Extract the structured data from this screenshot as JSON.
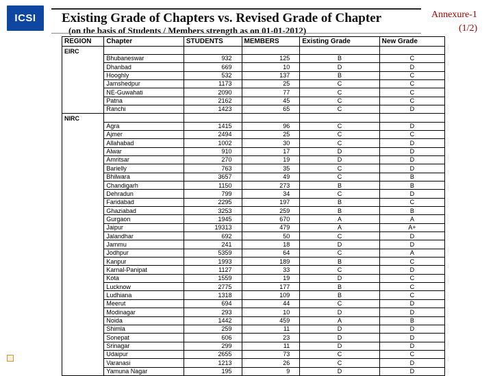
{
  "logo_text": "ICSI",
  "title": "Existing Grade of Chapters vs. Revised Grade of Chapter",
  "subtitle": "(on the basis of Students / Members strength as on 01-01-2012)",
  "annex_line1": "Annexure-1",
  "annex_line2": "(1/2)",
  "columns": [
    "REGION",
    "Chapter",
    "STUDENTS",
    "MEMBERS",
    "Existing Grade",
    "New Grade"
  ],
  "regions": [
    {
      "name": "EIRC",
      "rows": [
        [
          "Bhubaneswar",
          "932",
          "125",
          "B",
          "C"
        ],
        [
          "Dhanbad",
          "669",
          "10",
          "D",
          "D"
        ],
        [
          "Hooghly",
          "532",
          "137",
          "B",
          "C"
        ],
        [
          "Jamshedpur",
          "1173",
          "25",
          "C",
          "C"
        ],
        [
          "NE-Guwahati",
          "2090",
          "77",
          "C",
          "C"
        ],
        [
          "Patna",
          "2162",
          "45",
          "C",
          "C"
        ],
        [
          "Ranchi",
          "1423",
          "65",
          "C",
          "D"
        ]
      ]
    },
    {
      "name": "NIRC",
      "rows": [
        [
          "Agra",
          "1415",
          "96",
          "C",
          "D"
        ],
        [
          "Ajmer",
          "2494",
          "25",
          "C",
          "C"
        ],
        [
          "Allahabad",
          "1002",
          "30",
          "C",
          "D"
        ],
        [
          "Alwar",
          "910",
          "17",
          "D",
          "D"
        ],
        [
          "Amritsar",
          "270",
          "19",
          "D",
          "D"
        ],
        [
          "Barielly",
          "763",
          "35",
          "C",
          "D"
        ],
        [
          "Bhilwara",
          "3657",
          "49",
          "C",
          "B"
        ],
        [
          "Chandigarh",
          "1150",
          "273",
          "B",
          "B"
        ],
        [
          "Dehradun",
          "799",
          "34",
          "C",
          "D"
        ],
        [
          "Faridabad",
          "2295",
          "197",
          "B",
          "C"
        ],
        [
          "Ghaziabad",
          "3253",
          "259",
          "B",
          "B"
        ],
        [
          "Gurgaon",
          "1945",
          "670",
          "A",
          "A"
        ],
        [
          "Jaipur",
          "19313",
          "479",
          "A",
          "A+"
        ],
        [
          "Jalandhar",
          "692",
          "50",
          "C",
          "D"
        ],
        [
          "Jammu",
          "241",
          "18",
          "D",
          "D"
        ],
        [
          "Jodhpur",
          "5359",
          "64",
          "C",
          "A"
        ],
        [
          "Kanpur",
          "1993",
          "189",
          "B",
          "C"
        ],
        [
          "Karnal-Panipat",
          "1127",
          "33",
          "C",
          "D"
        ],
        [
          "Kota",
          "1559",
          "19",
          "D",
          "C"
        ],
        [
          "Lucknow",
          "2775",
          "177",
          "B",
          "C"
        ],
        [
          "Ludhiana",
          "1318",
          "109",
          "B",
          "C"
        ],
        [
          "Meerut",
          "694",
          "44",
          "C",
          "D"
        ],
        [
          "Modinagar",
          "293",
          "10",
          "D",
          "D"
        ],
        [
          "Noida",
          "1442",
          "459",
          "A",
          "B"
        ],
        [
          "Shimla",
          "259",
          "11",
          "D",
          "D"
        ],
        [
          "Sonepat",
          "606",
          "23",
          "D",
          "D"
        ],
        [
          "Srinagar",
          "299",
          "11",
          "D",
          "D"
        ],
        [
          "Udaipur",
          "2655",
          "73",
          "C",
          "C"
        ],
        [
          "Varanasi",
          "1213",
          "26",
          "C",
          "D"
        ],
        [
          "Yamuna Nagar",
          "195",
          "9",
          "D",
          "D"
        ]
      ]
    }
  ]
}
